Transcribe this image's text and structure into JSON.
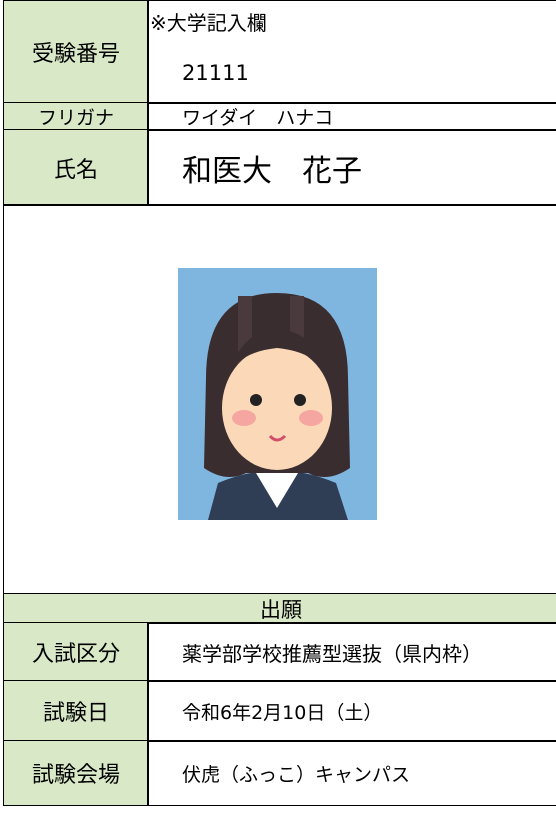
{
  "applicant": {
    "id_label": "受験番号",
    "office_note": "※大学記入欄",
    "id": "21111",
    "kana_label": "フリガナ",
    "kana": "ワイダイ　ハナコ",
    "name_label": "氏名",
    "name": "和医大　花子"
  },
  "application": {
    "heading": "出願",
    "rows": [
      [
        "入試区分",
        "薬学部学校推薦型選抜（県内枠）"
      ],
      [
        "試験日",
        "令和6年2月10日（土）"
      ],
      [
        "試験会場",
        "伏虎（ふっこ）キャンパス"
      ]
    ]
  }
}
